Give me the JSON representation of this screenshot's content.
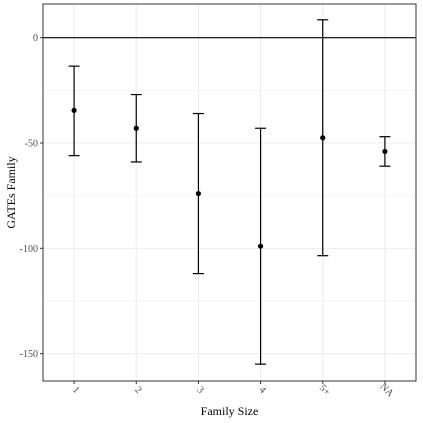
{
  "chart_data": {
    "type": "errorbar",
    "title": "",
    "xlabel": "Family Size",
    "ylabel": "GATEs Family",
    "categories": [
      "1",
      "2",
      "3",
      "4",
      "5+",
      "NA"
    ],
    "points": [
      {
        "category": "1",
        "estimate": -34.5,
        "lower": -56,
        "upper": -13.5
      },
      {
        "category": "2",
        "estimate": -43,
        "lower": -59,
        "upper": -27
      },
      {
        "category": "3",
        "estimate": -74,
        "lower": -112,
        "upper": -36
      },
      {
        "category": "4",
        "estimate": -99,
        "lower": -155,
        "upper": -43
      },
      {
        "category": "5+",
        "estimate": -47.5,
        "lower": -103.5,
        "upper": 8.5
      },
      {
        "category": "NA",
        "estimate": -54,
        "lower": -61,
        "upper": -47
      }
    ],
    "ylim": [
      -163,
      16
    ],
    "yticks": [
      0,
      -50,
      -100,
      -150
    ],
    "reference_line_y": 0,
    "grid": true,
    "colors": {
      "marks": "#000000",
      "grid": "#ebebeb",
      "panel_border": "#333333"
    }
  }
}
